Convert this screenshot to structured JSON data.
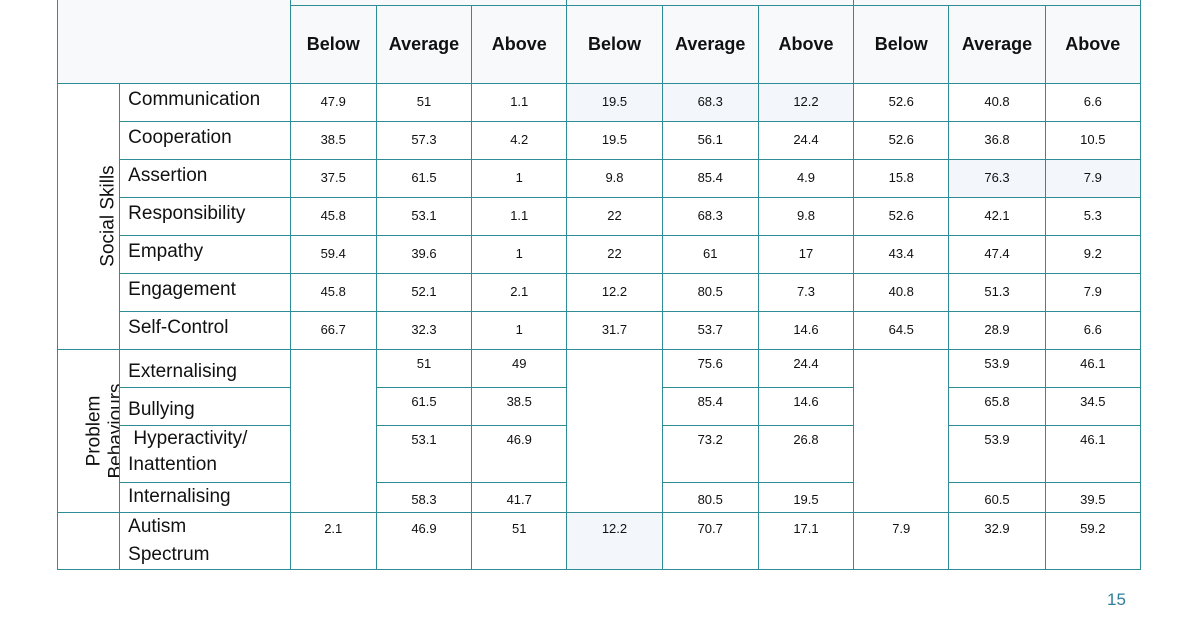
{
  "header": [
    "Below",
    "Average",
    "Above",
    "Below",
    "Average",
    "Above",
    "Below",
    "Average",
    "Above"
  ],
  "groups": {
    "social": "Social Skills",
    "problem_line1": "Problem",
    "problem_line2": "Behaviours"
  },
  "social_rows": [
    {
      "label": "Communication",
      "values": [
        "47.9",
        "51",
        "1.1",
        "19.5",
        "68.3",
        "12.2",
        "52.6",
        "40.8",
        "6.6"
      ]
    },
    {
      "label": "Cooperation",
      "values": [
        "38.5",
        "57.3",
        "4.2",
        "19.5",
        "56.1",
        "24.4",
        "52.6",
        "36.8",
        "10.5"
      ]
    },
    {
      "label": "Assertion",
      "values": [
        "37.5",
        "61.5",
        "1",
        "9.8",
        "85.4",
        "4.9",
        "15.8",
        "76.3",
        "7.9"
      ]
    },
    {
      "label": "Responsibility",
      "values": [
        "45.8",
        "53.1",
        "1.1",
        "22",
        "68.3",
        "9.8",
        "52.6",
        "42.1",
        "5.3"
      ]
    },
    {
      "label": "Empathy",
      "values": [
        "59.4",
        "39.6",
        "1",
        "22",
        "61",
        "17",
        "43.4",
        "47.4",
        "9.2"
      ]
    },
    {
      "label": "Engagement",
      "values": [
        "45.8",
        "52.1",
        "2.1",
        "12.2",
        "80.5",
        "7.3",
        "40.8",
        "51.3",
        "7.9"
      ]
    },
    {
      "label": "Self-Control",
      "values": [
        "66.7",
        "32.3",
        "1",
        "31.7",
        "53.7",
        "14.6",
        "64.5",
        "28.9",
        "6.6"
      ]
    }
  ],
  "problem_rows": [
    {
      "label": "Externalising",
      "values": [
        "51",
        "49",
        "75.6",
        "24.4",
        "53.9",
        "46.1"
      ]
    },
    {
      "label": "Bullying",
      "values": [
        "61.5",
        "38.5",
        "85.4",
        "14.6",
        "65.8",
        "34.5"
      ]
    },
    {
      "label_line1": " Hyperactivity/",
      "label_line2": "Inattention",
      "values": [
        "53.1",
        "46.9",
        "73.2",
        "26.8",
        "53.9",
        "46.1"
      ]
    },
    {
      "label": "Internalising",
      "values": [
        "58.3",
        "41.7",
        "80.5",
        "19.5",
        "60.5",
        "39.5"
      ]
    }
  ],
  "autism_row": {
    "label_line1": "Autism",
    "label_line2": "Spectrum",
    "values": [
      "2.1",
      "46.9",
      "51",
      "12.2",
      "70.7",
      "17.1",
      "7.9",
      "32.9",
      "59.2"
    ]
  },
  "page_number": "15"
}
